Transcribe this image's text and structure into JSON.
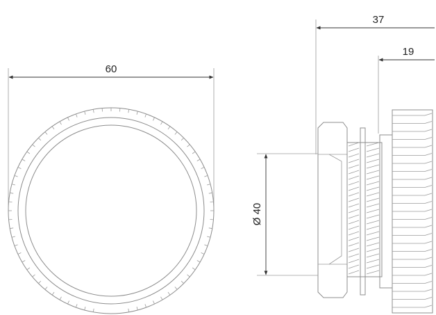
{
  "dimensions": {
    "overall_diameter": "60",
    "total_length": "37",
    "cap_length": "19",
    "thread_diameter": "Ø 40"
  }
}
